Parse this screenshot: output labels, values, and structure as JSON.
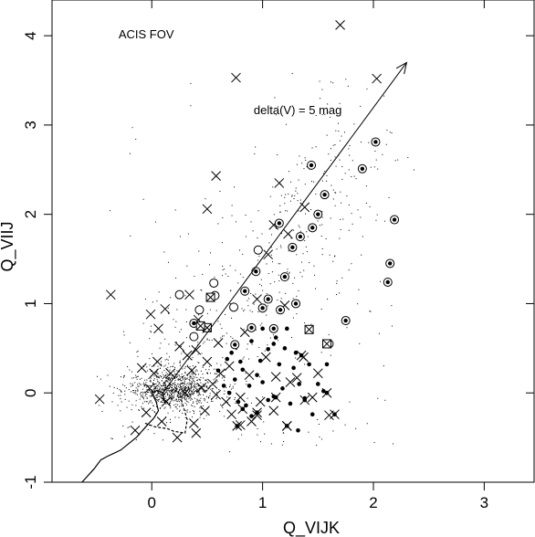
{
  "chart_data": {
    "type": "scatter",
    "xlabel": "Q_VIJK",
    "ylabel": "Q_VIIJ",
    "xlim": [
      -0.9,
      3.45
    ],
    "ylim": [
      -1.0,
      4.4
    ],
    "xticks": [
      0,
      1,
      2,
      3
    ],
    "yticks": [
      -1,
      0,
      1,
      2,
      3,
      4
    ],
    "xtick_labels": [
      "0",
      "1",
      "2",
      "3"
    ],
    "ytick_labels": [
      "-1",
      "0",
      "1",
      "2",
      "3",
      "4"
    ],
    "grid": false,
    "legend": "none",
    "annotations": [
      {
        "text": "ACIS FOV",
        "x": -0.3,
        "y": 3.97
      },
      {
        "text": "delta(V) = 5 mag",
        "x": 0.92,
        "y": 3.12
      }
    ],
    "arrow": {
      "from": [
        0.1,
        0.0
      ],
      "to": [
        2.3,
        3.7
      ]
    },
    "reference_curve": {
      "x": [
        -0.63,
        -0.52,
        -0.46,
        -0.4,
        -0.28,
        -0.14,
        -0.04,
        0.02,
        0.06,
        0.04,
        0.0,
        0.05,
        0.1,
        0.12
      ],
      "y": [
        -1.0,
        -0.85,
        -0.75,
        -0.71,
        -0.64,
        -0.5,
        -0.36,
        -0.28,
        -0.2,
        -0.1,
        0.0,
        0.03,
        0.0,
        -0.12
      ]
    },
    "reference_curve_dashed": {
      "x": [
        -0.06,
        0.03,
        0.14,
        0.2,
        0.3,
        0.32,
        0.26,
        0.22
      ],
      "y": [
        -0.34,
        -0.38,
        -0.4,
        -0.43,
        -0.45,
        -0.3,
        -0.05,
        0.05
      ]
    },
    "series": [
      {
        "marker": "x",
        "points": [
          [
            1.7,
            4.12
          ],
          [
            0.76,
            3.53
          ],
          [
            2.03,
            3.52
          ],
          [
            0.58,
            2.43
          ],
          [
            1.15,
            2.35
          ],
          [
            0.5,
            2.06
          ],
          [
            1.38,
            2.08
          ],
          [
            1.1,
            1.88
          ],
          [
            1.23,
            1.78
          ],
          [
            1.05,
            1.55
          ],
          [
            -0.37,
            1.1
          ],
          [
            -0.01,
            0.88
          ],
          [
            0.12,
            0.94
          ],
          [
            0.34,
            1.1
          ],
          [
            0.06,
            0.72
          ],
          [
            0.42,
            0.82
          ],
          [
            0.84,
            0.68
          ],
          [
            0.95,
            1.05
          ],
          [
            1.2,
            0.98
          ],
          [
            0.05,
            0.35
          ],
          [
            0.25,
            0.52
          ],
          [
            0.4,
            0.48
          ],
          [
            0.6,
            0.56
          ],
          [
            0.7,
            0.3
          ],
          [
            0.55,
            0.1
          ],
          [
            0.88,
            0.2
          ],
          [
            1.03,
            0.4
          ],
          [
            1.12,
            0.18
          ],
          [
            0.8,
            -0.05
          ],
          [
            0.98,
            -0.1
          ],
          [
            0.72,
            -0.24
          ],
          [
            0.9,
            -0.32
          ],
          [
            1.1,
            -0.2
          ],
          [
            1.25,
            0.12
          ],
          [
            -0.09,
            0.28
          ],
          [
            -0.02,
            0.05
          ],
          [
            0.17,
            0.22
          ],
          [
            0.36,
            0.25
          ],
          [
            0.48,
            -0.2
          ],
          [
            0.38,
            -0.34
          ],
          [
            0.23,
            -0.5
          ],
          [
            0.4,
            -0.45
          ],
          [
            0.62,
            0.22
          ],
          [
            0.67,
            -0.1
          ],
          [
            1.37,
            0.4
          ],
          [
            1.5,
            0.22
          ],
          [
            1.22,
            -0.37
          ],
          [
            1.31,
            0.17
          ],
          [
            1.45,
            -0.05
          ],
          [
            -0.47,
            -0.07
          ],
          [
            -0.15,
            -0.42
          ],
          [
            0.8,
            -0.36
          ],
          [
            0.95,
            -0.25
          ],
          [
            1.6,
            -0.25
          ],
          [
            0.3,
            0.0
          ],
          [
            0.13,
            -0.1
          ],
          [
            0.5,
            0.35
          ],
          [
            -0.05,
            -0.22
          ],
          [
            0.09,
            -0.32
          ],
          [
            0.45,
            0.06
          ],
          [
            0.58,
            -0.02
          ],
          [
            0.32,
            0.42
          ],
          [
            0.02,
            0.22
          ]
        ]
      },
      {
        "marker": "filled-dot",
        "points": [
          [
            1.05,
            0.49
          ],
          [
            1.1,
            0.55
          ],
          [
            0.9,
            0.58
          ],
          [
            1.2,
            0.5
          ],
          [
            1.3,
            0.45
          ],
          [
            0.8,
            0.35
          ],
          [
            0.95,
            0.2
          ],
          [
            1.15,
            0.32
          ],
          [
            1.28,
            0.28
          ],
          [
            1.42,
            0.32
          ],
          [
            0.75,
            0.15
          ],
          [
            0.88,
            0.08
          ],
          [
            1.0,
            0.12
          ],
          [
            1.18,
            0.05
          ],
          [
            1.33,
            0.1
          ],
          [
            1.5,
            0.1
          ],
          [
            1.58,
            0.32
          ],
          [
            1.38,
            -0.06
          ],
          [
            0.85,
            -0.14
          ],
          [
            1.1,
            -0.04
          ],
          [
            0.7,
            0.0
          ],
          [
            0.6,
            0.25
          ],
          [
            0.72,
            0.45
          ],
          [
            1.0,
            0.72
          ],
          [
            1.12,
            0.62
          ],
          [
            1.25,
            -0.12
          ],
          [
            1.32,
            -0.42
          ],
          [
            0.9,
            -0.26
          ],
          [
            1.05,
            -0.08
          ],
          [
            1.45,
            -0.24
          ],
          [
            0.65,
            0.08
          ],
          [
            0.78,
            -0.1
          ],
          [
            1.55,
            0.02
          ],
          [
            1.22,
            0.72
          ],
          [
            0.98,
            0.36
          ],
          [
            0.82,
            0.26
          ],
          [
            0.68,
            0.38
          ]
        ]
      },
      {
        "marker": "circle",
        "points": [
          [
            0.25,
            1.1
          ],
          [
            0.57,
            1.09
          ],
          [
            0.96,
            1.6
          ],
          [
            0.43,
            0.93
          ],
          [
            0.38,
            0.63
          ],
          [
            0.74,
            0.96
          ],
          [
            0.56,
            1.23
          ]
        ]
      },
      {
        "marker": "circled-dot",
        "points": [
          [
            1.44,
            2.55
          ],
          [
            1.56,
            2.22
          ],
          [
            2.02,
            2.81
          ],
          [
            1.9,
            2.51
          ],
          [
            2.19,
            1.94
          ],
          [
            1.5,
            2.0
          ],
          [
            1.45,
            1.85
          ],
          [
            1.15,
            1.9
          ],
          [
            1.34,
            1.75
          ],
          [
            1.27,
            1.63
          ],
          [
            2.15,
            1.45
          ],
          [
            2.13,
            1.24
          ],
          [
            1.2,
            1.3
          ],
          [
            1.05,
            1.05
          ],
          [
            0.84,
            1.14
          ],
          [
            0.94,
            1.36
          ],
          [
            1.3,
            1.0
          ],
          [
            1.16,
            0.93
          ],
          [
            1.0,
            0.95
          ],
          [
            0.9,
            0.73
          ],
          [
            0.75,
            0.54
          ],
          [
            1.1,
            0.72
          ],
          [
            1.75,
            0.81
          ],
          [
            1.6,
            0.55
          ],
          [
            0.38,
            0.78
          ]
        ]
      },
      {
        "marker": "boxed-x",
        "points": [
          [
            0.53,
            1.07
          ],
          [
            0.5,
            0.73
          ],
          [
            0.44,
            0.75
          ],
          [
            1.42,
            0.71
          ],
          [
            1.58,
            0.55
          ]
        ]
      },
      {
        "marker": "x-dot",
        "points": [
          [
            0.77,
            -0.37
          ],
          [
            0.95,
            -0.22
          ],
          [
            1.22,
            -0.37
          ],
          [
            1.38,
            -0.08
          ],
          [
            1.58,
            0.0
          ],
          [
            1.65,
            -0.24
          ],
          [
            1.35,
            0.42
          ],
          [
            1.12,
            -0.05
          ],
          [
            0.82,
            -0.18
          ]
        ]
      }
    ],
    "background_dots": {
      "count": 1500,
      "core_center": [
        0.2,
        0.05
      ],
      "core_spread": [
        0.2,
        0.12
      ],
      "halo_xlim": [
        -0.4,
        2.2
      ],
      "halo_ylim": [
        -0.6,
        3.6
      ]
    }
  }
}
